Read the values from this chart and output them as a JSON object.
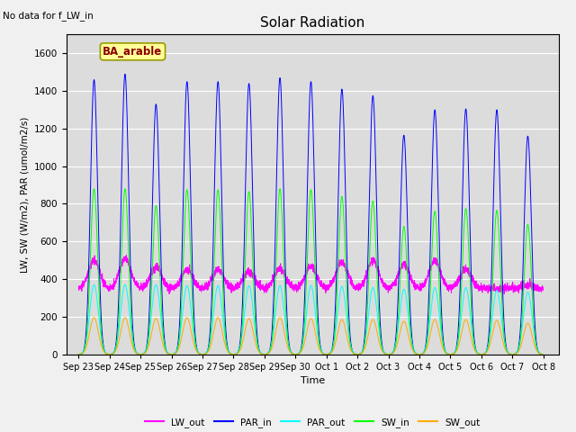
{
  "title": "Solar Radiation",
  "xlabel": "Time",
  "ylabel": "LW, SW (W/m2), PAR (umol/m2/s)",
  "annotation_text": "No data for f_LW_in",
  "legend_label_text": "BA_arable",
  "ylim": [
    0,
    1700
  ],
  "x_tick_labels": [
    "Sep 23",
    "Sep 24",
    "Sep 25",
    "Sep 26",
    "Sep 27",
    "Sep 28",
    "Sep 29",
    "Sep 30",
    "Oct 1",
    "Oct 2",
    "Oct 3",
    "Oct 4",
    "Oct 5",
    "Oct 6",
    "Oct 7",
    "Oct 8"
  ],
  "x_tick_positions": [
    0,
    1,
    2,
    3,
    4,
    5,
    6,
    7,
    8,
    9,
    10,
    11,
    12,
    13,
    14,
    15
  ],
  "colors": {
    "LW_out": "#ff00ff",
    "PAR_in": "#0000ff",
    "PAR_out": "#00ffff",
    "SW_in": "#00ff00",
    "SW_out": "#ffaa00"
  },
  "plot_bg": "#dcdcdc",
  "fig_bg": "#f0f0f0",
  "n_days": 15,
  "par_in_peaks": [
    1460,
    1490,
    1330,
    1450,
    1450,
    1440,
    1470,
    1450,
    1410,
    1375,
    1165,
    1300,
    1305,
    1300,
    1160
  ],
  "par_out_peaks": [
    370,
    370,
    370,
    365,
    365,
    365,
    365,
    365,
    360,
    355,
    345,
    355,
    355,
    340,
    330
  ],
  "sw_in_peaks": [
    880,
    880,
    790,
    875,
    875,
    865,
    880,
    875,
    840,
    815,
    680,
    760,
    775,
    765,
    690
  ],
  "sw_out_peaks": [
    195,
    195,
    190,
    195,
    195,
    190,
    195,
    190,
    185,
    185,
    175,
    185,
    185,
    180,
    165
  ],
  "lw_out_base": 350,
  "lw_out_peaks": [
    500,
    510,
    465,
    450,
    450,
    440,
    455,
    465,
    490,
    500,
    475,
    500,
    450,
    345,
    370
  ]
}
